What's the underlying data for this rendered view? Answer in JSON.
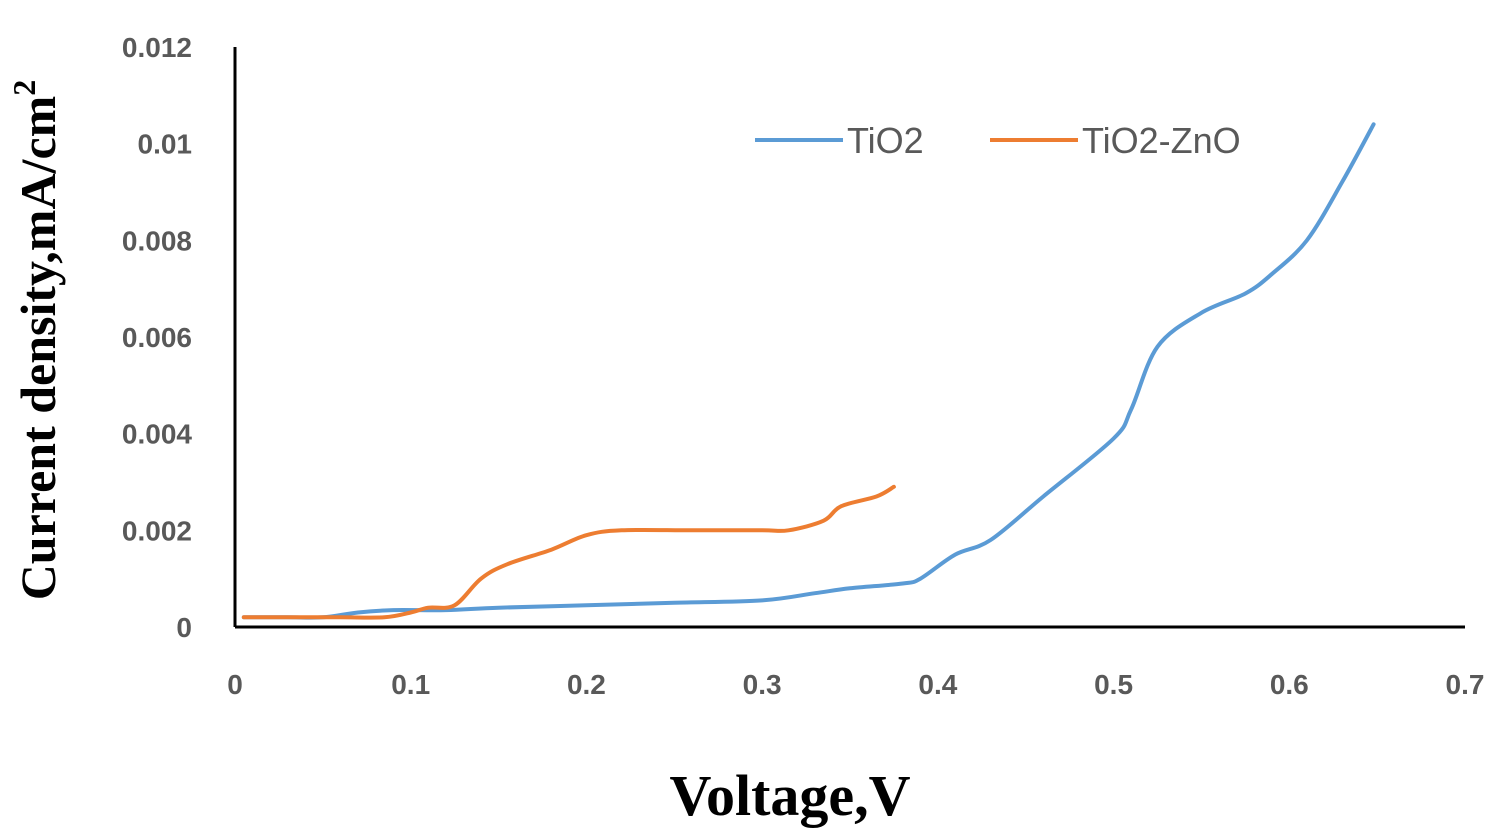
{
  "chart_data": {
    "type": "line",
    "xlabel": "Voltage,V",
    "ylabel": "Current density,mA/cm",
    "ylabel_sup": "2",
    "xlim": [
      0,
      0.7
    ],
    "ylim": [
      0,
      0.012
    ],
    "x_ticks": [
      "0",
      "0.1",
      "0.2",
      "0.3",
      "0.4",
      "0.5",
      "0.6",
      "0.7"
    ],
    "y_ticks": [
      "0",
      "0.002",
      "0.004",
      "0.006",
      "0.008",
      "0.01",
      "0.012"
    ],
    "grid": false,
    "legend_position": "top-right",
    "series": [
      {
        "name": "TiO2",
        "color": "#5b9bd5",
        "points": [
          [
            0.005,
            0.0002
          ],
          [
            0.03,
            0.0002
          ],
          [
            0.05,
            0.0002
          ],
          [
            0.07,
            0.0003
          ],
          [
            0.09,
            0.00035
          ],
          [
            0.12,
            0.00035
          ],
          [
            0.15,
            0.0004
          ],
          [
            0.2,
            0.00045
          ],
          [
            0.25,
            0.0005
          ],
          [
            0.3,
            0.00055
          ],
          [
            0.33,
            0.0007
          ],
          [
            0.35,
            0.0008
          ],
          [
            0.38,
            0.0009
          ],
          [
            0.39,
            0.001
          ],
          [
            0.41,
            0.0015
          ],
          [
            0.43,
            0.0018
          ],
          [
            0.46,
            0.0027
          ],
          [
            0.5,
            0.0039
          ],
          [
            0.51,
            0.0045
          ],
          [
            0.525,
            0.0058
          ],
          [
            0.55,
            0.0065
          ],
          [
            0.575,
            0.0069
          ],
          [
            0.59,
            0.0073
          ],
          [
            0.61,
            0.008
          ],
          [
            0.63,
            0.0092
          ],
          [
            0.648,
            0.0104
          ]
        ]
      },
      {
        "name": "TiO2-ZnO",
        "color": "#ed7d31",
        "points": [
          [
            0.005,
            0.0002
          ],
          [
            0.03,
            0.0002
          ],
          [
            0.06,
            0.0002
          ],
          [
            0.085,
            0.0002
          ],
          [
            0.1,
            0.0003
          ],
          [
            0.11,
            0.0004
          ],
          [
            0.125,
            0.00045
          ],
          [
            0.14,
            0.001
          ],
          [
            0.155,
            0.0013
          ],
          [
            0.18,
            0.0016
          ],
          [
            0.2,
            0.0019
          ],
          [
            0.22,
            0.002
          ],
          [
            0.26,
            0.002
          ],
          [
            0.3,
            0.002
          ],
          [
            0.315,
            0.002
          ],
          [
            0.335,
            0.0022
          ],
          [
            0.345,
            0.0025
          ],
          [
            0.365,
            0.0027
          ],
          [
            0.375,
            0.0029
          ]
        ]
      }
    ]
  }
}
